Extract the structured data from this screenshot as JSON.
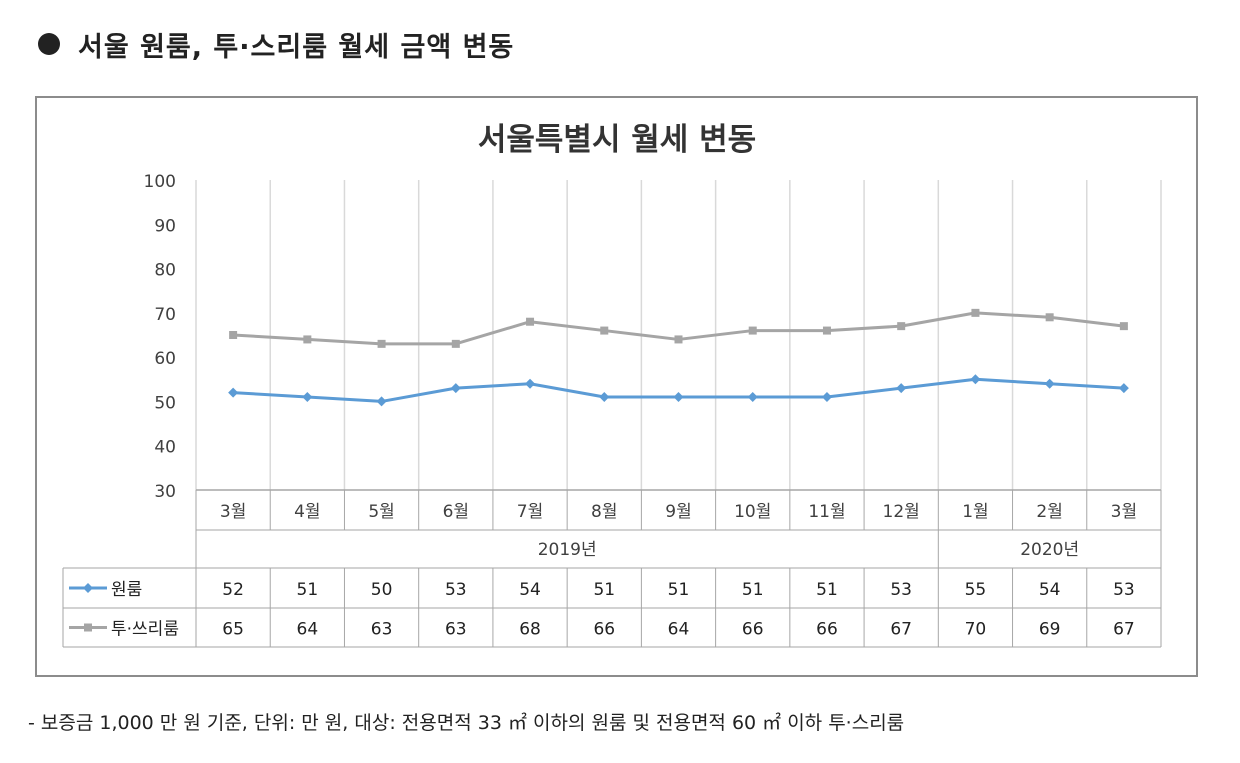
{
  "heading": {
    "title": "서울 원룸, 투·스리룸 월세 금액 변동"
  },
  "chart_data": {
    "type": "line",
    "title": "서울특별시 월세 변동",
    "categories": [
      "3월",
      "4월",
      "5월",
      "6월",
      "7월",
      "8월",
      "9월",
      "10월",
      "11월",
      "12월",
      "1월",
      "2월",
      "3월"
    ],
    "year_groups": [
      {
        "label": "2019년",
        "count": 10
      },
      {
        "label": "2020년",
        "count": 3
      }
    ],
    "ylim": [
      30,
      100
    ],
    "yticks": [
      30,
      40,
      50,
      60,
      70,
      80,
      90,
      100
    ],
    "grid": "vertical",
    "legend": "data-table",
    "series": [
      {
        "name": "원룸",
        "color": "#5b9bd5",
        "marker": "diamond",
        "values": [
          52,
          51,
          50,
          53,
          54,
          51,
          51,
          51,
          51,
          53,
          55,
          54,
          53
        ]
      },
      {
        "name": "투·쓰리룸",
        "color": "#a5a5a5",
        "marker": "square",
        "values": [
          65,
          64,
          63,
          63,
          68,
          66,
          64,
          66,
          66,
          67,
          70,
          69,
          67
        ]
      }
    ]
  },
  "footnote": "- 보증금 1,000 만 원 기준, 단위: 만 원, 대상: 전용면적 33 ㎡ 이하의 원룸 및 전용면적 60 ㎡ 이하 투·스리룸"
}
